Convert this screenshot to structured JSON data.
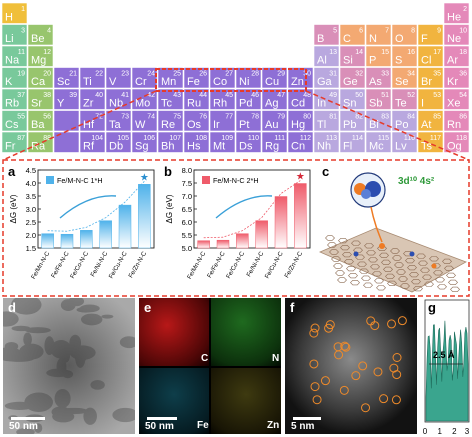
{
  "periodic_table": {
    "colors": {
      "alkali": "#79c99b",
      "alkaline_earth": "#98c56d",
      "transition": "#8e6fd6",
      "post_transition": "#b9a8df",
      "metalloid": "#d98fb8",
      "nonmetal": "#f3a972",
      "halogen": "#f1b43f",
      "noble": "#e489b9",
      "hydrogen": "#f0bf3a",
      "highlight_outline": "#e63a2a"
    },
    "elements": [
      {
        "s": "H",
        "n": "1",
        "c": "hydrogen"
      },
      {
        "s": "He",
        "n": "2",
        "c": "noble"
      },
      {
        "s": "Li",
        "n": "3",
        "c": "alkali"
      },
      {
        "s": "Be",
        "n": "4",
        "c": "alkaline_earth"
      },
      {
        "s": "B",
        "n": "5",
        "c": "metalloid"
      },
      {
        "s": "C",
        "n": "6",
        "c": "nonmetal"
      },
      {
        "s": "N",
        "n": "7",
        "c": "nonmetal"
      },
      {
        "s": "O",
        "n": "8",
        "c": "nonmetal"
      },
      {
        "s": "F",
        "n": "9",
        "c": "halogen"
      },
      {
        "s": "Ne",
        "n": "10",
        "c": "noble"
      },
      {
        "s": "Na",
        "n": "11",
        "c": "alkali"
      },
      {
        "s": "Mg",
        "n": "12",
        "c": "alkaline_earth"
      },
      {
        "s": "Al",
        "n": "13",
        "c": "post_transition"
      },
      {
        "s": "Si",
        "n": "14",
        "c": "metalloid"
      },
      {
        "s": "P",
        "n": "15",
        "c": "nonmetal"
      },
      {
        "s": "S",
        "n": "16",
        "c": "nonmetal"
      },
      {
        "s": "Cl",
        "n": "17",
        "c": "halogen"
      },
      {
        "s": "Ar",
        "n": "18",
        "c": "noble"
      },
      {
        "s": "K",
        "n": "19",
        "c": "alkali"
      },
      {
        "s": "Ca",
        "n": "20",
        "c": "alkaline_earth"
      },
      {
        "s": "Sc",
        "n": "21",
        "c": "transition"
      },
      {
        "s": "Ti",
        "n": "22",
        "c": "transition"
      },
      {
        "s": "V",
        "n": "23",
        "c": "transition"
      },
      {
        "s": "Cr",
        "n": "24",
        "c": "transition"
      },
      {
        "s": "Mn",
        "n": "25",
        "c": "transition"
      },
      {
        "s": "Fe",
        "n": "26",
        "c": "transition"
      },
      {
        "s": "Co",
        "n": "27",
        "c": "transition"
      },
      {
        "s": "Ni",
        "n": "28",
        "c": "transition"
      },
      {
        "s": "Cu",
        "n": "29",
        "c": "transition"
      },
      {
        "s": "Zn",
        "n": "30",
        "c": "transition"
      },
      {
        "s": "Ga",
        "n": "31",
        "c": "post_transition"
      },
      {
        "s": "Ge",
        "n": "32",
        "c": "metalloid"
      },
      {
        "s": "As",
        "n": "33",
        "c": "metalloid"
      },
      {
        "s": "Se",
        "n": "34",
        "c": "nonmetal"
      },
      {
        "s": "Br",
        "n": "35",
        "c": "halogen"
      },
      {
        "s": "Kr",
        "n": "36",
        "c": "noble"
      },
      {
        "s": "Rb",
        "n": "37",
        "c": "alkali"
      },
      {
        "s": "Sr",
        "n": "38",
        "c": "alkaline_earth"
      },
      {
        "s": "Y",
        "n": "39",
        "c": "transition"
      },
      {
        "s": "Zr",
        "n": "40",
        "c": "transition"
      },
      {
        "s": "Nb",
        "n": "41",
        "c": "transition"
      },
      {
        "s": "Mo",
        "n": "42",
        "c": "transition"
      },
      {
        "s": "Tc",
        "n": "43",
        "c": "transition"
      },
      {
        "s": "Ru",
        "n": "44",
        "c": "transition"
      },
      {
        "s": "Rh",
        "n": "45",
        "c": "transition"
      },
      {
        "s": "Pd",
        "n": "46",
        "c": "transition"
      },
      {
        "s": "Ag",
        "n": "47",
        "c": "transition"
      },
      {
        "s": "Cd",
        "n": "48",
        "c": "transition"
      },
      {
        "s": "In",
        "n": "49",
        "c": "post_transition"
      },
      {
        "s": "Sn",
        "n": "50",
        "c": "post_transition"
      },
      {
        "s": "Sb",
        "n": "51",
        "c": "metalloid"
      },
      {
        "s": "Te",
        "n": "52",
        "c": "metalloid"
      },
      {
        "s": "I",
        "n": "53",
        "c": "halogen"
      },
      {
        "s": "Xe",
        "n": "54",
        "c": "noble"
      },
      {
        "s": "Cs",
        "n": "55",
        "c": "alkali"
      },
      {
        "s": "Ba",
        "n": "56",
        "c": "alkaline_earth"
      },
      {
        "s": "",
        "n": "",
        "c": "transition"
      },
      {
        "s": "Hf",
        "n": "72",
        "c": "transition"
      },
      {
        "s": "Ta",
        "n": "73",
        "c": "transition"
      },
      {
        "s": "W",
        "n": "74",
        "c": "transition"
      },
      {
        "s": "Re",
        "n": "75",
        "c": "transition"
      },
      {
        "s": "Os",
        "n": "76",
        "c": "transition"
      },
      {
        "s": "Ir",
        "n": "77",
        "c": "transition"
      },
      {
        "s": "Pt",
        "n": "78",
        "c": "transition"
      },
      {
        "s": "Au",
        "n": "79",
        "c": "transition"
      },
      {
        "s": "Hg",
        "n": "80",
        "c": "transition"
      },
      {
        "s": "Tl",
        "n": "81",
        "c": "post_transition"
      },
      {
        "s": "Pb",
        "n": "82",
        "c": "post_transition"
      },
      {
        "s": "Bi",
        "n": "83",
        "c": "post_transition"
      },
      {
        "s": "Po",
        "n": "84",
        "c": "post_transition"
      },
      {
        "s": "At",
        "n": "85",
        "c": "halogen"
      },
      {
        "s": "Rn",
        "n": "86",
        "c": "noble"
      },
      {
        "s": "Fr",
        "n": "87",
        "c": "alkali"
      },
      {
        "s": "Ra",
        "n": "88",
        "c": "alkaline_earth"
      },
      {
        "s": "",
        "n": "",
        "c": "transition"
      },
      {
        "s": "Rf",
        "n": "104",
        "c": "transition"
      },
      {
        "s": "Db",
        "n": "105",
        "c": "transition"
      },
      {
        "s": "Sg",
        "n": "106",
        "c": "transition"
      },
      {
        "s": "Bh",
        "n": "107",
        "c": "transition"
      },
      {
        "s": "Hs",
        "n": "108",
        "c": "transition"
      },
      {
        "s": "Mt",
        "n": "109",
        "c": "transition"
      },
      {
        "s": "Ds",
        "n": "110",
        "c": "transition"
      },
      {
        "s": "Rg",
        "n": "111",
        "c": "transition"
      },
      {
        "s": "Cn",
        "n": "112",
        "c": "transition"
      },
      {
        "s": "Nh",
        "n": "113",
        "c": "post_transition"
      },
      {
        "s": "Fl",
        "n": "114",
        "c": "post_transition"
      },
      {
        "s": "Mc",
        "n": "115",
        "c": "post_transition"
      },
      {
        "s": "Lv",
        "n": "116",
        "c": "post_transition"
      },
      {
        "s": "Ts",
        "n": "117",
        "c": "halogen"
      },
      {
        "s": "Og",
        "n": "118",
        "c": "noble"
      }
    ],
    "highlighted": [
      "Mn",
      "Fe",
      "Co",
      "Ni",
      "Cu",
      "Zn"
    ]
  },
  "panels": {
    "a": {
      "letter": "a",
      "legend": "Fe/M-N-C 1*H",
      "bar_color": "#4fb2ea"
    },
    "b": {
      "letter": "b",
      "legend": "Fe/M-N-C 2*H",
      "bar_color": "#ef5b6a"
    },
    "c": {
      "letter": "c",
      "label": "3d¹⁰ 4s²"
    },
    "d": {
      "letter": "d",
      "scale": "50 nm"
    },
    "e": {
      "letter": "e",
      "scale": "50 nm",
      "maps": [
        "C",
        "N",
        "Fe",
        "Zn"
      ]
    },
    "f": {
      "letter": "f",
      "scale": "5 nm"
    },
    "g": {
      "letter": "g",
      "label": "2.5 Å",
      "xticks": [
        "0",
        "1",
        "2",
        "3"
      ]
    }
  },
  "chart_data": [
    {
      "type": "bar",
      "title": "",
      "legend": "Fe/M-N-C 1*H",
      "ylabel": "ΔG (eV)",
      "categories": [
        "Fe/Mn-N-C",
        "Fe/Fe-N-C",
        "Fe/Co-N-C",
        "Fe/Ni-N-C",
        "Fe/Cu-N-C",
        "Fe/Zn-N-C"
      ],
      "values": [
        2.05,
        2.03,
        2.18,
        2.55,
        3.15,
        3.95
      ],
      "ylim": [
        1.5,
        4.5
      ],
      "yticks": [
        "1.5",
        "2.0",
        "2.5",
        "3.0",
        "3.5",
        "4.0",
        "4.5"
      ]
    },
    {
      "type": "bar",
      "title": "",
      "legend": "Fe/M-N-C 2*H",
      "ylabel": "ΔG (eV)",
      "categories": [
        "Fe/Mn-N-C",
        "Fe/Fe-N-C",
        "Fe/Co-N-C",
        "Fe/Ni-N-C",
        "Fe/Cu-N-C",
        "Fe/Zn-N-C"
      ],
      "values": [
        5.28,
        5.3,
        5.55,
        6.05,
        6.98,
        7.48
      ],
      "ylim": [
        5.0,
        8.0
      ],
      "yticks": [
        "5.0",
        "5.5",
        "6.0",
        "6.5",
        "7.0",
        "7.5",
        "8.0"
      ]
    }
  ]
}
